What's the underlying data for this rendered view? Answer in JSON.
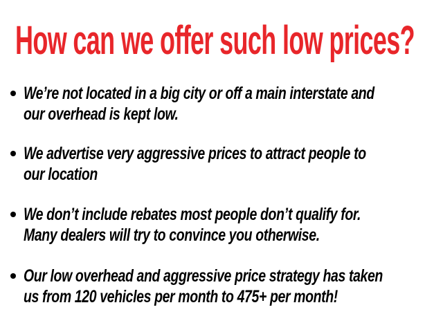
{
  "title": "How can we offer such low prices?",
  "colors": {
    "title": "#e8262a",
    "text": "#000000",
    "background": "#ffffff"
  },
  "bullets": [
    {
      "lines": [
        "We’re not located in a big city or off a main interstate and",
        "our overhead is kept low."
      ]
    },
    {
      "lines": [
        "We advertise very aggressive prices to attract people to",
        "our location"
      ]
    },
    {
      "lines": [
        "We don’t include rebates most people don’t qualify for.",
        "Many dealers will try to convince you otherwise."
      ]
    },
    {
      "lines": [
        "Our low overhead and aggressive price strategy has taken",
        "us from 120 vehicles per month to 475+ per month!"
      ]
    }
  ]
}
